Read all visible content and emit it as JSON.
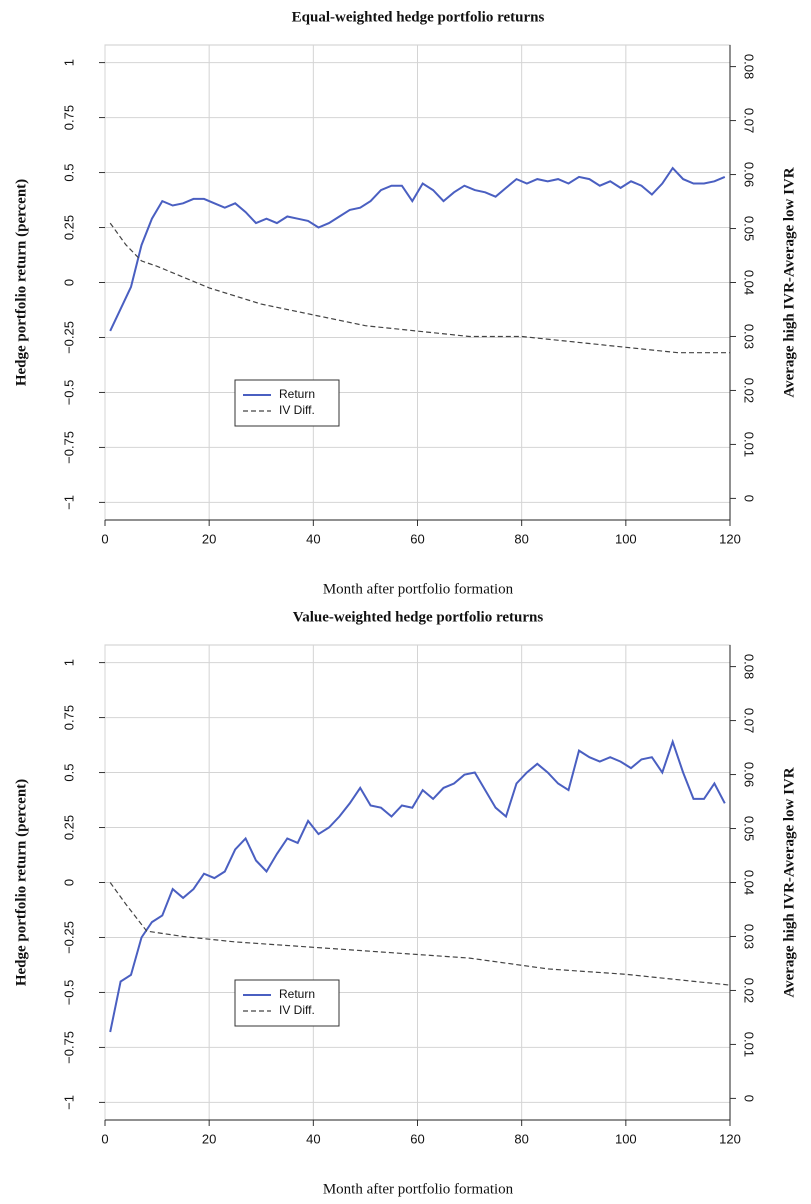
{
  "chart_data": [
    {
      "type": "line",
      "title": "Equal-weighted hedge portfolio returns",
      "xlabel": "Month after portfolio formation",
      "ylabel": "Hedge portfolio return (percent)",
      "y2label": "Average high IVR-Average low IVR",
      "xlim": [
        0,
        120
      ],
      "xticks": [
        0,
        20,
        40,
        60,
        80,
        100,
        120
      ],
      "ylim": [
        -1.08,
        1.08
      ],
      "yticks": [
        {
          "value": -1,
          "label": "−1"
        },
        {
          "value": -0.75,
          "label": "−0.75"
        },
        {
          "value": -0.5,
          "label": "−0.5"
        },
        {
          "value": -0.25,
          "label": "−0.25"
        },
        0,
        0.25,
        0.5,
        0.75,
        1
      ],
      "y2lim": [
        -0.004,
        0.084
      ],
      "y2ticks": [
        0,
        0.01,
        0.02,
        0.03,
        0.04,
        0.05,
        0.06,
        0.07,
        0.08
      ],
      "grid": true,
      "legend": "lower-left",
      "series": [
        {
          "name": "Return",
          "color": "#4a5fc1",
          "style": "solid",
          "x": [
            1,
            3,
            5,
            7,
            9,
            11,
            13,
            15,
            17,
            19,
            21,
            23,
            25,
            27,
            29,
            31,
            33,
            35,
            37,
            39,
            41,
            43,
            45,
            47,
            49,
            51,
            53,
            55,
            57,
            59,
            61,
            63,
            65,
            67,
            69,
            71,
            73,
            75,
            77,
            79,
            81,
            83,
            85,
            87,
            89,
            91,
            93,
            95,
            97,
            99,
            101,
            103,
            105,
            107,
            109,
            111,
            113,
            115,
            117,
            119
          ],
          "values": [
            -0.22,
            -0.12,
            -0.02,
            0.17,
            0.29,
            0.37,
            0.35,
            0.36,
            0.38,
            0.38,
            0.36,
            0.34,
            0.36,
            0.32,
            0.27,
            0.29,
            0.27,
            0.3,
            0.29,
            0.28,
            0.25,
            0.27,
            0.3,
            0.33,
            0.34,
            0.37,
            0.42,
            0.44,
            0.44,
            0.37,
            0.45,
            0.42,
            0.37,
            0.41,
            0.44,
            0.42,
            0.41,
            0.39,
            0.43,
            0.47,
            0.45,
            0.47,
            0.46,
            0.47,
            0.45,
            0.48,
            0.47,
            0.44,
            0.46,
            0.43,
            0.46,
            0.44,
            0.4,
            0.45,
            0.52,
            0.47,
            0.45,
            0.45,
            0.46,
            0.48
          ]
        },
        {
          "name": "IV Diff.",
          "color": "#444444",
          "style": "dashed",
          "axis": "y2",
          "x": [
            1,
            4,
            7,
            10,
            15,
            20,
            30,
            40,
            50,
            60,
            70,
            80,
            90,
            100,
            110,
            120
          ],
          "values": [
            0.051,
            0.047,
            0.044,
            0.043,
            0.041,
            0.039,
            0.036,
            0.034,
            0.032,
            0.031,
            0.03,
            0.03,
            0.029,
            0.028,
            0.027,
            0.027
          ]
        }
      ]
    },
    {
      "type": "line",
      "title": "Value-weighted hedge portfolio returns",
      "xlabel": "Month after portfolio formation",
      "ylabel": "Hedge portfolio return (percent)",
      "y2label": "Average high IVR-Average low IVR",
      "xlim": [
        0,
        120
      ],
      "xticks": [
        0,
        20,
        40,
        60,
        80,
        100,
        120
      ],
      "ylim": [
        -1.08,
        1.08
      ],
      "yticks": [
        {
          "value": -1,
          "label": "−1"
        },
        {
          "value": -0.75,
          "label": "−0.75"
        },
        {
          "value": -0.5,
          "label": "−0.5"
        },
        {
          "value": -0.25,
          "label": "−0.25"
        },
        0,
        0.25,
        0.5,
        0.75,
        1
      ],
      "y2lim": [
        -0.004,
        0.084
      ],
      "y2ticks": [
        0,
        0.01,
        0.02,
        0.03,
        0.04,
        0.05,
        0.06,
        0.07,
        0.08
      ],
      "grid": true,
      "legend": "lower-left",
      "series": [
        {
          "name": "Return",
          "color": "#4a5fc1",
          "style": "solid",
          "x": [
            1,
            3,
            5,
            7,
            9,
            11,
            13,
            15,
            17,
            19,
            21,
            23,
            25,
            27,
            29,
            31,
            33,
            35,
            37,
            39,
            41,
            43,
            45,
            47,
            49,
            51,
            53,
            55,
            57,
            59,
            61,
            63,
            65,
            67,
            69,
            71,
            73,
            75,
            77,
            79,
            81,
            83,
            85,
            87,
            89,
            91,
            93,
            95,
            97,
            99,
            101,
            103,
            105,
            107,
            109,
            111,
            113,
            115,
            117,
            119
          ],
          "values": [
            -0.68,
            -0.45,
            -0.42,
            -0.25,
            -0.18,
            -0.15,
            -0.03,
            -0.07,
            -0.03,
            0.04,
            0.02,
            0.05,
            0.15,
            0.2,
            0.1,
            0.05,
            0.13,
            0.2,
            0.18,
            0.28,
            0.22,
            0.25,
            0.3,
            0.36,
            0.43,
            0.35,
            0.34,
            0.3,
            0.35,
            0.34,
            0.42,
            0.38,
            0.43,
            0.45,
            0.49,
            0.5,
            0.42,
            0.34,
            0.3,
            0.45,
            0.5,
            0.54,
            0.5,
            0.45,
            0.42,
            0.6,
            0.57,
            0.55,
            0.57,
            0.55,
            0.52,
            0.56,
            0.57,
            0.5,
            0.64,
            0.5,
            0.38,
            0.38,
            0.45,
            0.36
          ]
        },
        {
          "name": "IV Diff.",
          "color": "#444444",
          "style": "dashed",
          "axis": "y2",
          "x": [
            1,
            4,
            8,
            15,
            25,
            40,
            55,
            70,
            85,
            100,
            110,
            120
          ],
          "values": [
            0.04,
            0.036,
            0.031,
            0.03,
            0.029,
            0.028,
            0.027,
            0.026,
            0.024,
            0.023,
            0.022,
            0.021
          ]
        }
      ]
    }
  ]
}
